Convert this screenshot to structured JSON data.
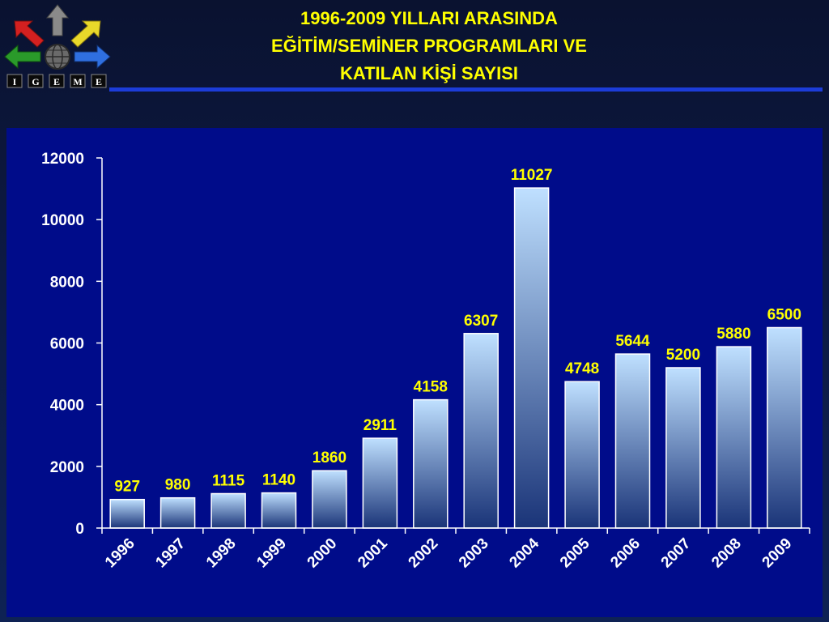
{
  "header": {
    "title_lines": [
      "1996-2009 YILLARI ARASINDA",
      "EĞİTİM/SEMİNER PROGRAMLARI VE",
      "KATILAN KİŞİ SAYISI"
    ],
    "logo_letters": [
      "I",
      "G",
      "E",
      "M",
      "E"
    ]
  },
  "colors": {
    "title": "#ffff00",
    "panel": "#000c8a",
    "bar_top": "#bfe0ff",
    "bar_bottom": "#1a3478",
    "axis": "#ffffff",
    "data_label": "#ffff00",
    "rule": "#1c3cd8"
  },
  "chart_data": {
    "type": "bar",
    "categories": [
      "1996",
      "1997",
      "1998",
      "1999",
      "2000",
      "2001",
      "2002",
      "2003",
      "2004",
      "2005",
      "2006",
      "2007",
      "2008",
      "2009"
    ],
    "values": [
      927,
      980,
      1115,
      1140,
      1860,
      2911,
      4158,
      6307,
      11027,
      4748,
      5644,
      5200,
      5880,
      6500
    ],
    "ylim": [
      0,
      12000
    ],
    "yticks": [
      0,
      2000,
      4000,
      6000,
      8000,
      10000,
      12000
    ],
    "xlabel": "",
    "ylabel": "",
    "grid": false,
    "data_labels": true
  }
}
